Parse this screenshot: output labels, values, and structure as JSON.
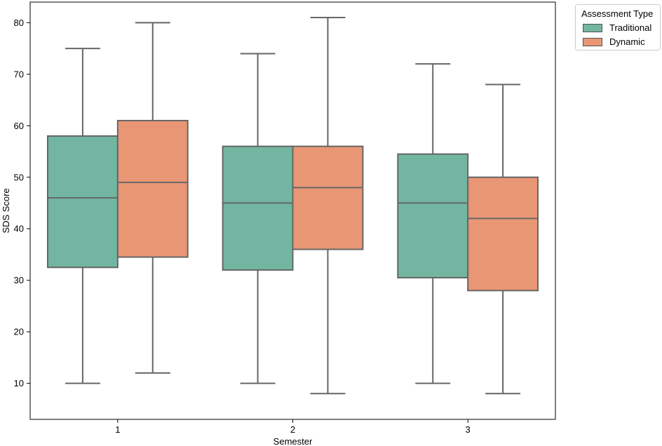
{
  "chart_data": {
    "type": "boxplot",
    "xlabel": "Semester",
    "ylabel": "SDS Score",
    "categories": [
      "1",
      "2",
      "3"
    ],
    "ylim": [
      3,
      84
    ],
    "yticks": [
      10,
      20,
      30,
      40,
      50,
      60,
      70,
      80
    ],
    "grid": false,
    "legend": {
      "title": "Assessment Type",
      "placement": "outside-top-right"
    },
    "series": [
      {
        "name": "Traditional",
        "color": "#72b6a1",
        "boxes": [
          {
            "category": "1",
            "whisker_low": 10,
            "q1": 32.5,
            "median": 46,
            "q3": 58,
            "whisker_high": 75
          },
          {
            "category": "2",
            "whisker_low": 10,
            "q1": 32,
            "median": 45,
            "q3": 56,
            "whisker_high": 74
          },
          {
            "category": "3",
            "whisker_low": 10,
            "q1": 30.5,
            "median": 45,
            "q3": 54.5,
            "whisker_high": 72
          }
        ]
      },
      {
        "name": "Dynamic",
        "color": "#e99675",
        "boxes": [
          {
            "category": "1",
            "whisker_low": 12,
            "q1": 34.5,
            "median": 49,
            "q3": 61,
            "whisker_high": 80
          },
          {
            "category": "2",
            "whisker_low": 8,
            "q1": 36,
            "median": 48,
            "q3": 56,
            "whisker_high": 81
          },
          {
            "category": "3",
            "whisker_low": 8,
            "q1": 28,
            "median": 42,
            "q3": 50,
            "whisker_high": 68
          }
        ]
      }
    ],
    "line_color": "#666666"
  }
}
